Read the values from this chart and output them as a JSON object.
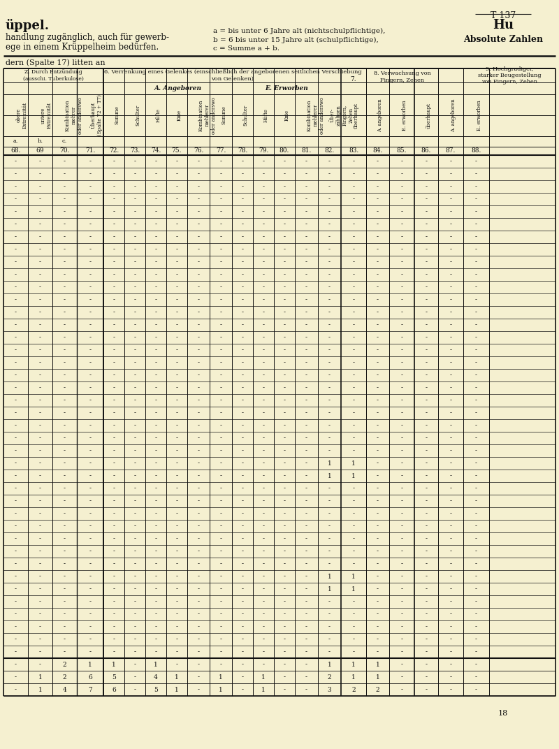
{
  "bg_color": "#f5f0d0",
  "title_right": "T 137",
  "title_hu": "Hu",
  "title_left1": "üppel.",
  "title_left2": "handlung zugänglich, auch für gewerb-",
  "title_left3": "ege in einem Krüppelheim bedürfen.",
  "legend_a": "a = bis unter 6 Jahre alt (nichtschulpflichtige),",
  "legend_b": "b = 6 bis unter 15 Jahre alt (schulpflichtige),",
  "legend_c": "c = Summe a + b.",
  "abs_zahlen": "Absolute Zahlen",
  "subtitle": "dern (Spalte 17) litten an",
  "page_num": "18",
  "col_numbers": [
    "68.",
    "69",
    "70.",
    "71.",
    "72.",
    "73.",
    "74.",
    "75.",
    "76.",
    "77.",
    "78.",
    "79.",
    "80.",
    "81.",
    "82.",
    "83.",
    "84.",
    "85.",
    "86.",
    "87.",
    "88."
  ],
  "num_data_rows": 40,
  "total_rows": [
    [
      "-",
      "-",
      "2",
      "1",
      "1",
      "-",
      "1",
      "-",
      "-",
      "-",
      "-",
      "-",
      "-",
      "-",
      "1",
      "1",
      "1",
      "-",
      "-",
      "-",
      "-"
    ],
    [
      "-",
      "1",
      "2",
      "6",
      "5",
      "-",
      "4",
      "1",
      "-",
      "1",
      "-",
      "1",
      "-",
      "-",
      "2",
      "1",
      "1",
      "-",
      "-",
      "-",
      "-"
    ],
    [
      "-",
      "1",
      "4",
      "7",
      "6",
      "-",
      "5",
      "1",
      "-",
      "1",
      "-",
      "1",
      "-",
      "-",
      "3",
      "2",
      "2",
      "-",
      "-",
      "-",
      "-"
    ]
  ],
  "col_lefts": [
    5,
    40,
    75,
    110,
    148,
    178,
    208,
    238,
    268,
    300,
    332,
    362,
    392,
    422,
    455,
    488,
    524,
    557,
    593,
    627,
    663,
    700,
    795
  ],
  "special_rows": {
    "24": [
      "-",
      "-",
      "-",
      "-",
      "-",
      "-",
      "-",
      "-",
      "-",
      "-",
      "-",
      "-",
      "-",
      "-",
      "1",
      "1",
      "-",
      "-",
      "-",
      "-",
      "-"
    ],
    "25": [
      "-",
      "-",
      "-",
      "-",
      "-",
      "-",
      "-",
      "-",
      "-",
      "-",
      "-",
      "-",
      "-",
      "-",
      "1",
      "1",
      "-",
      "-",
      "-",
      "-",
      "-"
    ],
    "33": [
      "-",
      "-",
      "-",
      "-",
      "-",
      "-",
      "-",
      "-",
      "-",
      "-",
      "-",
      "-",
      "-",
      "-",
      "1",
      "1",
      "-",
      "-",
      "-",
      "-",
      "-"
    ],
    "34": [
      "-",
      "-",
      "-",
      "-",
      "-",
      "-",
      "-",
      "-",
      "-",
      "-",
      "-",
      "-",
      "-",
      "-",
      "1",
      "1",
      "-",
      "-",
      "-",
      "-",
      "-"
    ]
  }
}
